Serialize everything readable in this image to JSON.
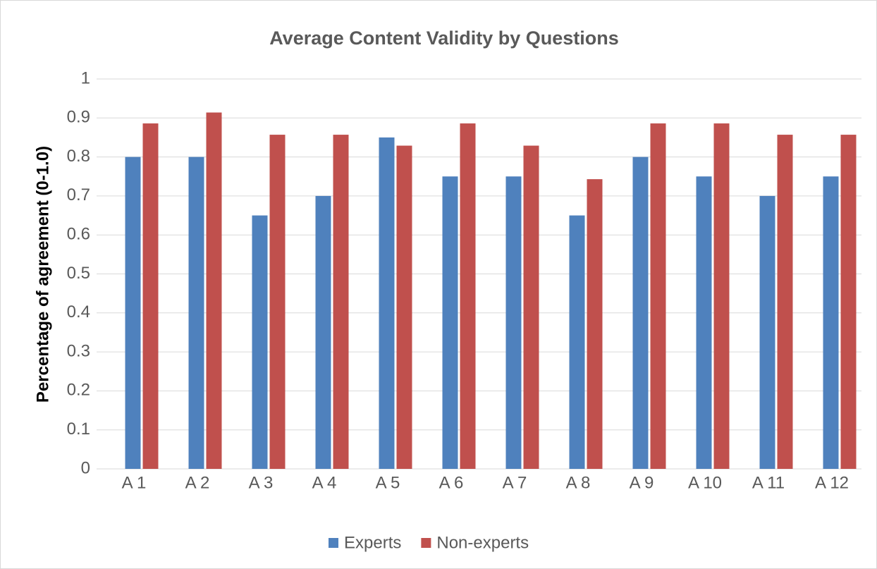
{
  "chart_data": {
    "type": "bar",
    "title": "Average Content Validity by Questions",
    "y_label": "Percentage of agreement (0-1.0)",
    "categories": [
      "A 1",
      "A 2",
      "A 3",
      "A 4",
      "A 5",
      "A 6",
      "A 7",
      "A 8",
      "A 9",
      "A 10",
      "A 11",
      "A 12"
    ],
    "series": [
      {
        "name": "Experts",
        "color": "#4f81bd",
        "values": [
          0.8,
          0.8,
          0.65,
          0.7,
          0.85,
          0.75,
          0.75,
          0.65,
          0.8,
          0.75,
          0.7,
          0.75
        ]
      },
      {
        "name": "Non-experts",
        "color": "#c0504d",
        "values": [
          0.886,
          0.914,
          0.857,
          0.857,
          0.829,
          0.886,
          0.829,
          0.743,
          0.886,
          0.886,
          0.857,
          0.857
        ]
      }
    ],
    "ylim": [
      0,
      1
    ],
    "yticks": [
      0,
      0.1,
      0.2,
      0.3,
      0.4,
      0.5,
      0.6,
      0.7,
      0.8,
      0.9,
      1
    ],
    "grid": true,
    "legend": "bottom"
  }
}
